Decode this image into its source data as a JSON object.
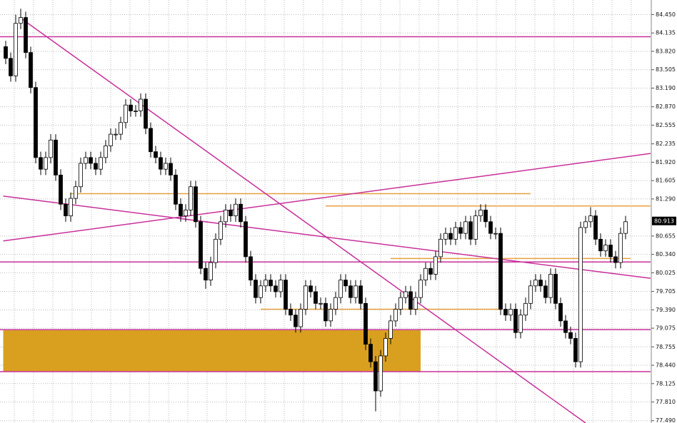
{
  "chart_data": {
    "type": "candlestick",
    "ylim": [
      77.45,
      84.7
    ],
    "yticks": [
      {
        "value": 84.45,
        "label": "84.450"
      },
      84.135,
      {
        "value": 83.82,
        "label": "83.820"
      },
      83.505,
      {
        "value": 83.19,
        "label": "83.190"
      },
      {
        "value": 82.87,
        "label": "82.870"
      },
      82.555,
      82.235,
      {
        "value": 81.92,
        "label": "81.920"
      },
      81.605,
      {
        "value": 81.29,
        "label": "81.290"
      },
      80.655,
      {
        "value": 80.34,
        "label": "80.340"
      },
      80.025,
      79.705,
      {
        "value": 79.39,
        "label": "79.390"
      },
      79.075,
      78.755,
      {
        "value": 78.44,
        "label": "78.440"
      },
      78.125,
      {
        "value": 77.81,
        "label": "77.810"
      },
      {
        "value": 77.49,
        "label": "77.490"
      }
    ],
    "grid": true,
    "last_price": 80.913,
    "up_color": "#ffffff",
    "down_color": "#000000",
    "candles": [
      [
        83.9,
        84.0,
        83.6,
        83.7
      ],
      [
        83.7,
        83.8,
        83.3,
        83.4
      ],
      [
        83.4,
        84.45,
        83.3,
        84.3
      ],
      [
        84.3,
        84.55,
        84.2,
        84.4
      ],
      [
        84.4,
        84.5,
        83.7,
        83.8
      ],
      [
        83.8,
        83.9,
        83.1,
        83.2
      ],
      [
        83.2,
        83.3,
        81.9,
        82.0
      ],
      [
        82.0,
        82.1,
        81.7,
        81.8
      ],
      [
        81.8,
        82.1,
        81.7,
        82.0
      ],
      [
        82.0,
        82.4,
        81.9,
        82.3
      ],
      [
        82.3,
        82.4,
        81.6,
        81.7
      ],
      [
        81.7,
        81.8,
        81.1,
        81.2
      ],
      [
        81.2,
        81.3,
        80.9,
        81.0
      ],
      [
        81.0,
        81.4,
        80.9,
        81.3
      ],
      [
        81.3,
        81.6,
        81.2,
        81.5
      ],
      [
        81.5,
        82.0,
        81.4,
        81.9
      ],
      [
        81.9,
        82.1,
        81.8,
        82.0
      ],
      [
        82.0,
        82.1,
        81.8,
        81.9
      ],
      [
        81.9,
        82.0,
        81.7,
        81.8
      ],
      [
        81.8,
        82.1,
        81.7,
        82.0
      ],
      [
        82.0,
        82.3,
        81.9,
        82.2
      ],
      [
        82.2,
        82.5,
        82.1,
        82.4
      ],
      [
        82.4,
        82.5,
        82.3,
        82.4
      ],
      [
        82.4,
        82.7,
        82.3,
        82.6
      ],
      [
        82.6,
        83.0,
        82.5,
        82.9
      ],
      [
        82.9,
        83.0,
        82.7,
        82.8
      ],
      [
        82.8,
        82.9,
        82.7,
        82.8
      ],
      [
        82.8,
        83.1,
        82.7,
        83.0
      ],
      [
        83.0,
        83.1,
        82.4,
        82.5
      ],
      [
        82.5,
        82.6,
        82.0,
        82.1
      ],
      [
        82.1,
        82.2,
        81.9,
        82.0
      ],
      [
        82.0,
        82.1,
        81.7,
        81.8
      ],
      [
        81.8,
        82.0,
        81.7,
        81.9
      ],
      [
        81.9,
        82.0,
        81.6,
        81.7
      ],
      [
        81.7,
        81.8,
        81.1,
        81.2
      ],
      [
        81.2,
        81.3,
        80.9,
        81.0
      ],
      [
        81.0,
        81.2,
        80.9,
        81.1
      ],
      [
        81.1,
        81.6,
        81.0,
        81.5
      ],
      [
        81.5,
        81.6,
        80.8,
        80.9
      ],
      [
        80.9,
        81.0,
        80.0,
        80.1
      ],
      [
        80.1,
        80.2,
        79.75,
        79.9
      ],
      [
        79.9,
        80.3,
        79.8,
        80.2
      ],
      [
        80.2,
        80.7,
        80.1,
        80.6
      ],
      [
        80.6,
        81.0,
        80.5,
        80.9
      ],
      [
        80.9,
        81.2,
        80.8,
        81.1
      ],
      [
        81.1,
        81.2,
        80.9,
        81.0
      ],
      [
        81.0,
        81.3,
        80.9,
        81.2
      ],
      [
        81.2,
        81.3,
        80.8,
        80.9
      ],
      [
        80.9,
        81.0,
        80.2,
        80.3
      ],
      [
        80.3,
        80.4,
        79.8,
        79.9
      ],
      [
        79.9,
        80.0,
        79.5,
        79.6
      ],
      [
        79.6,
        79.9,
        79.5,
        79.8
      ],
      [
        79.8,
        80.0,
        79.7,
        79.9
      ],
      [
        79.9,
        80.0,
        79.7,
        79.8
      ],
      [
        79.8,
        79.9,
        79.6,
        79.7
      ],
      [
        79.7,
        80.0,
        79.6,
        79.9
      ],
      [
        79.9,
        80.0,
        79.3,
        79.4
      ],
      [
        79.4,
        79.5,
        79.2,
        79.3
      ],
      [
        79.3,
        79.4,
        79.0,
        79.1
      ],
      [
        79.1,
        79.5,
        79.0,
        79.4
      ],
      [
        79.4,
        79.9,
        79.3,
        79.8
      ],
      [
        79.8,
        79.9,
        79.6,
        79.7
      ],
      [
        79.7,
        79.8,
        79.4,
        79.5
      ],
      [
        79.5,
        79.6,
        79.4,
        79.5
      ],
      [
        79.5,
        79.6,
        79.1,
        79.2
      ],
      [
        79.2,
        79.5,
        79.1,
        79.4
      ],
      [
        79.4,
        79.7,
        79.3,
        79.6
      ],
      [
        79.6,
        80.0,
        79.5,
        79.9
      ],
      [
        79.9,
        80.0,
        79.7,
        79.8
      ],
      [
        79.8,
        79.9,
        79.5,
        79.6
      ],
      [
        79.6,
        79.9,
        79.5,
        79.8
      ],
      [
        79.8,
        79.9,
        79.4,
        79.5
      ],
      [
        79.5,
        79.6,
        78.7,
        78.8
      ],
      [
        78.8,
        78.9,
        78.4,
        78.5
      ],
      [
        78.5,
        78.6,
        77.65,
        78.0
      ],
      [
        78.0,
        78.7,
        77.9,
        78.6
      ],
      [
        78.6,
        79.0,
        78.5,
        78.9
      ],
      [
        78.9,
        79.3,
        78.8,
        79.2
      ],
      [
        79.2,
        79.5,
        79.1,
        79.4
      ],
      [
        79.4,
        79.7,
        79.3,
        79.6
      ],
      [
        79.6,
        79.8,
        79.5,
        79.7
      ],
      [
        79.7,
        79.8,
        79.3,
        79.4
      ],
      [
        79.4,
        79.7,
        79.3,
        79.6
      ],
      [
        79.6,
        80.0,
        79.5,
        79.9
      ],
      [
        79.9,
        80.2,
        79.8,
        80.1
      ],
      [
        80.1,
        80.2,
        79.9,
        80.0
      ],
      [
        80.0,
        80.4,
        79.9,
        80.3
      ],
      [
        80.3,
        80.7,
        80.2,
        80.6
      ],
      [
        80.6,
        80.8,
        80.5,
        80.7
      ],
      [
        80.7,
        80.8,
        80.5,
        80.6
      ],
      [
        80.6,
        80.9,
        80.5,
        80.8
      ],
      [
        80.8,
        80.9,
        80.6,
        80.7
      ],
      [
        80.7,
        81.0,
        80.6,
        80.9
      ],
      [
        80.9,
        81.0,
        80.5,
        80.6
      ],
      [
        80.6,
        81.1,
        80.5,
        81.0
      ],
      [
        81.0,
        81.2,
        80.9,
        81.1
      ],
      [
        81.1,
        81.2,
        80.8,
        80.9
      ],
      [
        80.9,
        81.0,
        80.6,
        80.7
      ],
      [
        80.7,
        80.8,
        80.6,
        80.7
      ],
      [
        80.7,
        80.8,
        79.3,
        79.4
      ],
      [
        79.4,
        79.5,
        79.2,
        79.3
      ],
      [
        79.3,
        79.5,
        79.2,
        79.4
      ],
      [
        79.4,
        79.5,
        78.9,
        79.0
      ],
      [
        79.0,
        79.4,
        78.9,
        79.3
      ],
      [
        79.3,
        79.6,
        79.2,
        79.5
      ],
      [
        79.5,
        79.9,
        79.4,
        79.8
      ],
      [
        79.8,
        80.0,
        79.7,
        79.9
      ],
      [
        79.9,
        80.0,
        79.7,
        79.8
      ],
      [
        79.8,
        79.9,
        79.5,
        79.6
      ],
      [
        79.6,
        80.1,
        79.5,
        80.0
      ],
      [
        80.0,
        80.1,
        79.4,
        79.5
      ],
      [
        79.5,
        79.6,
        79.1,
        79.2
      ],
      [
        79.2,
        79.3,
        78.9,
        79.0
      ],
      [
        79.0,
        79.1,
        78.8,
        78.9
      ],
      [
        78.9,
        79.0,
        78.4,
        78.5
      ],
      [
        78.5,
        80.9,
        78.4,
        80.8
      ],
      [
        80.8,
        81.0,
        80.7,
        80.9
      ],
      [
        80.9,
        81.15,
        80.8,
        81.0
      ],
      [
        81.0,
        81.1,
        80.5,
        80.6
      ],
      [
        80.6,
        80.7,
        80.3,
        80.4
      ],
      [
        80.4,
        80.6,
        80.3,
        80.5
      ],
      [
        80.5,
        80.6,
        80.2,
        80.3
      ],
      [
        80.3,
        80.4,
        80.1,
        80.2
      ],
      [
        80.2,
        80.8,
        80.1,
        80.7
      ],
      [
        80.7,
        81.0,
        80.6,
        80.9
      ]
    ],
    "zones": [
      {
        "color": "#d9a020",
        "x": [
          -0.5,
          83
        ],
        "y": [
          78.33,
          79.04
        ]
      }
    ],
    "levels": [
      {
        "color": "#c8309a",
        "value": 84.07
      },
      {
        "color": "#c8309a",
        "value": 80.21
      },
      {
        "color": "#c8309a",
        "value": 79.05
      },
      {
        "color": "#c8309a",
        "value": 78.33
      }
    ],
    "segments": [
      {
        "color": "#e8a040",
        "x": [
          13,
          105
        ],
        "value": 81.38
      },
      {
        "color": "#e8a040",
        "x": [
          64,
          129
        ],
        "value": 81.17
      },
      {
        "color": "#e8a040",
        "x": [
          77,
          125
        ],
        "value": 80.27
      },
      {
        "color": "#e8a040",
        "x": [
          51,
          99
        ],
        "value": 79.4
      }
    ],
    "trendlines": [
      {
        "color": "#c8309a",
        "x": [
          3,
          116
        ],
        "y": [
          84.39,
          77.45
        ]
      },
      {
        "color": "#c8309a",
        "x": [
          -0.5,
          129
        ],
        "y": [
          81.34,
          79.93
        ]
      },
      {
        "color": "#c8309a",
        "x": [
          -0.5,
          129
        ],
        "y": [
          80.57,
          82.07
        ]
      }
    ]
  }
}
